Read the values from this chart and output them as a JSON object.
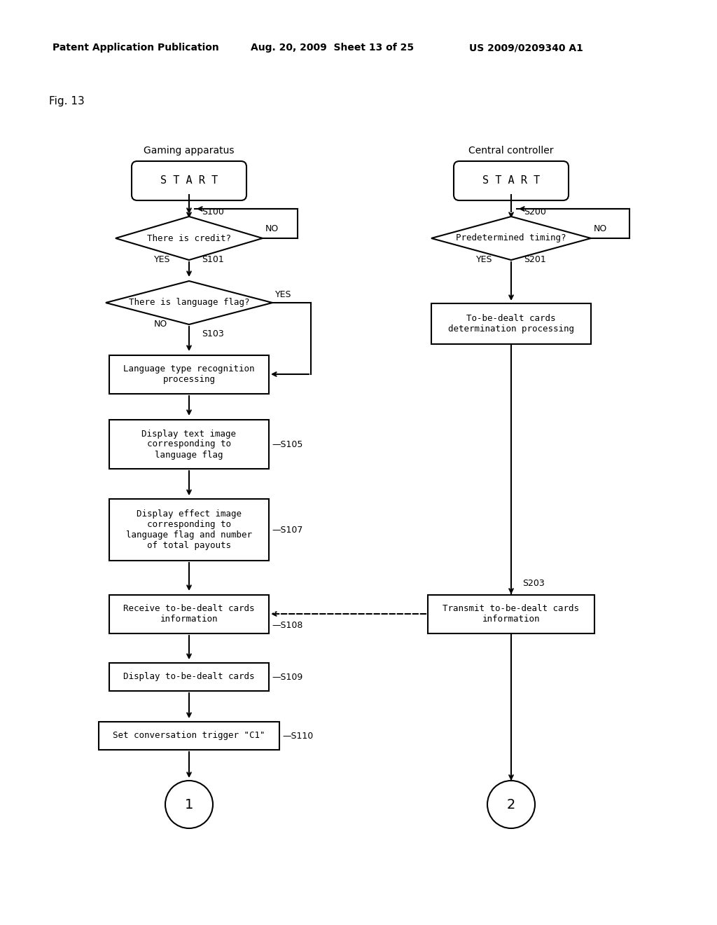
{
  "bg_color": "#ffffff",
  "header_left": "Patent Application Publication",
  "header_mid": "Aug. 20, 2009  Sheet 13 of 25",
  "header_right": "US 2009/0209340 A1",
  "fig_label": "Fig. 13",
  "left_title": "Gaming apparatus",
  "right_title": "Central controller",
  "font": "DejaVu Sans Mono",
  "font_normal": "DejaVu Sans"
}
